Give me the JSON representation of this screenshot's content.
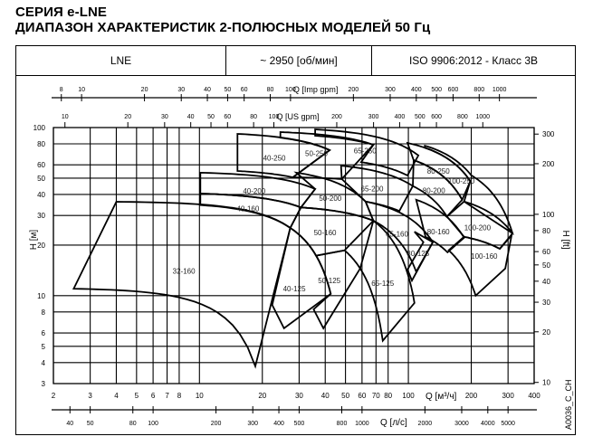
{
  "title_line1": "СЕРИЯ e-LNE",
  "title_line2": "ДИАПАЗОН ХАРАКТЕРИСТИК 2-ПОЛЮСНЫХ МОДЕЛЕЙ 50 Гц",
  "header": {
    "series": "LNE",
    "speed": "~ 2950  [об/мин]",
    "standard": "ISO 9906:2012 - Класс 3B"
  },
  "figure_code": "A0036_C_CH",
  "chart_data": {
    "type": "area",
    "x_scale": "log",
    "y_scale": "log",
    "xlim": [
      2,
      400
    ],
    "ylim": [
      3,
      100
    ],
    "grid": true,
    "xlabel": "Q [м³/ч]",
    "ylabel": "H [м]",
    "x_ticks": [
      2,
      3,
      4,
      5,
      6,
      7,
      8,
      10,
      20,
      30,
      40,
      50,
      60,
      70,
      80,
      100,
      200,
      300,
      400
    ],
    "y_ticks": [
      3,
      4,
      5,
      6,
      8,
      10,
      20,
      30,
      40,
      50,
      60,
      80,
      100
    ],
    "right_axis": {
      "label": "H [ft]",
      "factor_to_m": 0.3048,
      "ticks": [
        10,
        20,
        30,
        40,
        50,
        60,
        80,
        100,
        200,
        300
      ]
    },
    "top_axis_imp": {
      "label": "Q [Imp gpm]",
      "factor_to_m3h": 0.2728,
      "ticks": [
        8,
        10,
        20,
        30,
        40,
        50,
        60,
        80,
        100,
        200,
        300,
        400,
        500,
        600,
        800,
        1000
      ]
    },
    "top_axis_us": {
      "label": "Q [US gpm]",
      "factor_to_m3h": 0.2271,
      "ticks": [
        10,
        20,
        30,
        40,
        50,
        60,
        80,
        100,
        200,
        300,
        400,
        500,
        600,
        800,
        1000
      ]
    },
    "bottom_axis2": {
      "label": "Q [л/с]",
      "factor_to_m3h": 0.06,
      "ticks": [
        40,
        50,
        80,
        100,
        200,
        300,
        400,
        500,
        800,
        1000,
        2000,
        3000,
        4000,
        5000
      ]
    },
    "models": [
      {
        "name": "32-160",
        "outline": [
          [
            4,
            36.2
          ],
          [
            27.2,
            25.3,
            "c"
          ],
          [
            18.5,
            3.8
          ],
          [
            2.5,
            11.0,
            "c"
          ]
        ]
      },
      {
        "name": "40-125",
        "outline": [
          [
            27.2,
            25.3
          ],
          [
            42.5,
            10.25,
            "c"
          ],
          [
            25.4,
            6.4
          ],
          [
            22.3,
            8.8
          ]
        ]
      },
      {
        "name": "40-160",
        "outline": [
          [
            10.1,
            40.5
          ],
          [
            30.6,
            33.5,
            "c"
          ],
          [
            27.2,
            25.3
          ],
          [
            10.1,
            34.6,
            "c"
          ]
        ]
      },
      {
        "name": "40-200",
        "outline": [
          [
            10.1,
            53.9
          ],
          [
            35.8,
            43.1,
            "c"
          ],
          [
            30.6,
            33.5
          ],
          [
            10.1,
            40.5,
            "c"
          ]
        ]
      },
      {
        "name": "40-250",
        "outline": [
          [
            15.2,
            91.7
          ],
          [
            42,
            73.4,
            "c"
          ],
          [
            28,
            50.6
          ],
          [
            15.2,
            55.2,
            "c"
          ]
        ]
      },
      {
        "name": "50-125",
        "outline": [
          [
            36.2,
            17.3
          ],
          [
            49.5,
            18.6
          ],
          [
            58.8,
            14.5,
            "c"
          ],
          [
            39.2,
            6.4
          ],
          [
            35.2,
            8.3
          ],
          [
            42.5,
            10.25
          ],
          [
            36.2,
            17.3,
            "c"
          ]
        ]
      },
      {
        "name": "50-160",
        "outline": [
          [
            30.6,
            33.5
          ],
          [
            68,
            27.9,
            "c"
          ],
          [
            49.5,
            18.6
          ],
          [
            36.2,
            17.3
          ],
          [
            27.2,
            25.3,
            "c"
          ]
        ]
      },
      {
        "name": "50-200",
        "outline": [
          [
            29.1,
            53.9
          ],
          [
            62.4,
            36.3,
            "c"
          ],
          [
            68,
            27.9
          ],
          [
            30.6,
            33.5,
            "c"
          ],
          [
            35.8,
            43.1
          ]
        ]
      },
      {
        "name": "50-250",
        "outline": [
          [
            24.4,
            94
          ],
          [
            68,
            79,
            "c"
          ],
          [
            48,
            49.4
          ],
          [
            28,
            50.6,
            "c"
          ],
          [
            42,
            73.4
          ],
          [
            24.4,
            87,
            "c"
          ]
        ]
      },
      {
        "name": "65-125",
        "outline": [
          [
            68,
            27.9
          ],
          [
            107,
            9.05,
            "c"
          ],
          [
            75.4,
            5.4
          ],
          [
            58.8,
            14.5,
            "c"
          ]
        ]
      },
      {
        "name": "65-160",
        "outline": [
          [
            62.4,
            36.3
          ],
          [
            131,
            20.8,
            "c"
          ],
          [
            109,
            13.9
          ],
          [
            68,
            27.9,
            "c"
          ]
        ]
      },
      {
        "name": "65-200",
        "outline": [
          [
            47.6,
            59.3
          ],
          [
            105,
            44.9,
            "c"
          ],
          [
            90.5,
            31.9
          ],
          [
            62.4,
            36.3,
            "c"
          ],
          [
            48,
            49.4
          ]
        ]
      },
      {
        "name": "65-250",
        "outline": [
          [
            35.8,
            97.5
          ],
          [
            111.6,
            68.3,
            "c"
          ],
          [
            99,
            51.9
          ],
          [
            59.4,
            62.3,
            "c"
          ],
          [
            68,
            79
          ],
          [
            35.8,
            89.4,
            "c"
          ]
        ]
      },
      {
        "name": "80-125",
        "outline": [
          [
            107,
            24
          ],
          [
            131,
            20.8
          ],
          [
            104,
            12.3
          ],
          [
            99,
            14.3
          ],
          [
            118,
            20.8
          ]
        ]
      },
      {
        "name": "80-160",
        "outline": [
          [
            109,
            37.2
          ],
          [
            184.7,
            22.1,
            "c"
          ],
          [
            154,
            18.1
          ],
          [
            120.8,
            22.4,
            "c"
          ]
        ]
      },
      {
        "name": "80-200",
        "outline": [
          [
            106,
            64
          ],
          [
            181,
            37.2,
            "c"
          ],
          [
            153,
            29.6
          ],
          [
            105,
            44.9,
            "c"
          ]
        ]
      },
      {
        "name": "80-250",
        "outline": [
          [
            99,
            81
          ],
          [
            198,
            48,
            "c"
          ],
          [
            181,
            37.2
          ],
          [
            106,
            64,
            "c"
          ]
        ]
      },
      {
        "name": "100-160",
        "outline": [
          [
            184.7,
            22.4
          ],
          [
            274,
            19,
            "c"
          ],
          [
            312,
            22.9
          ],
          [
            291,
            14.5
          ],
          [
            210,
            10
          ],
          [
            156,
            18.6,
            "c"
          ]
        ]
      },
      {
        "name": "100-200",
        "outline": [
          [
            153,
            29.6
          ],
          [
            184.7,
            36.3
          ],
          [
            315,
            23.5,
            "c"
          ],
          [
            274,
            19
          ],
          [
            184.7,
            22.4,
            "c"
          ]
        ]
      },
      {
        "name": "100-250",
        "outline": [
          [
            120,
            78
          ],
          [
            200,
            52,
            "c"
          ],
          [
            315,
            23.5,
            "c"
          ],
          [
            184.7,
            36.3
          ],
          [
            198,
            48
          ],
          [
            120,
            75.8,
            "c"
          ]
        ]
      }
    ]
  }
}
